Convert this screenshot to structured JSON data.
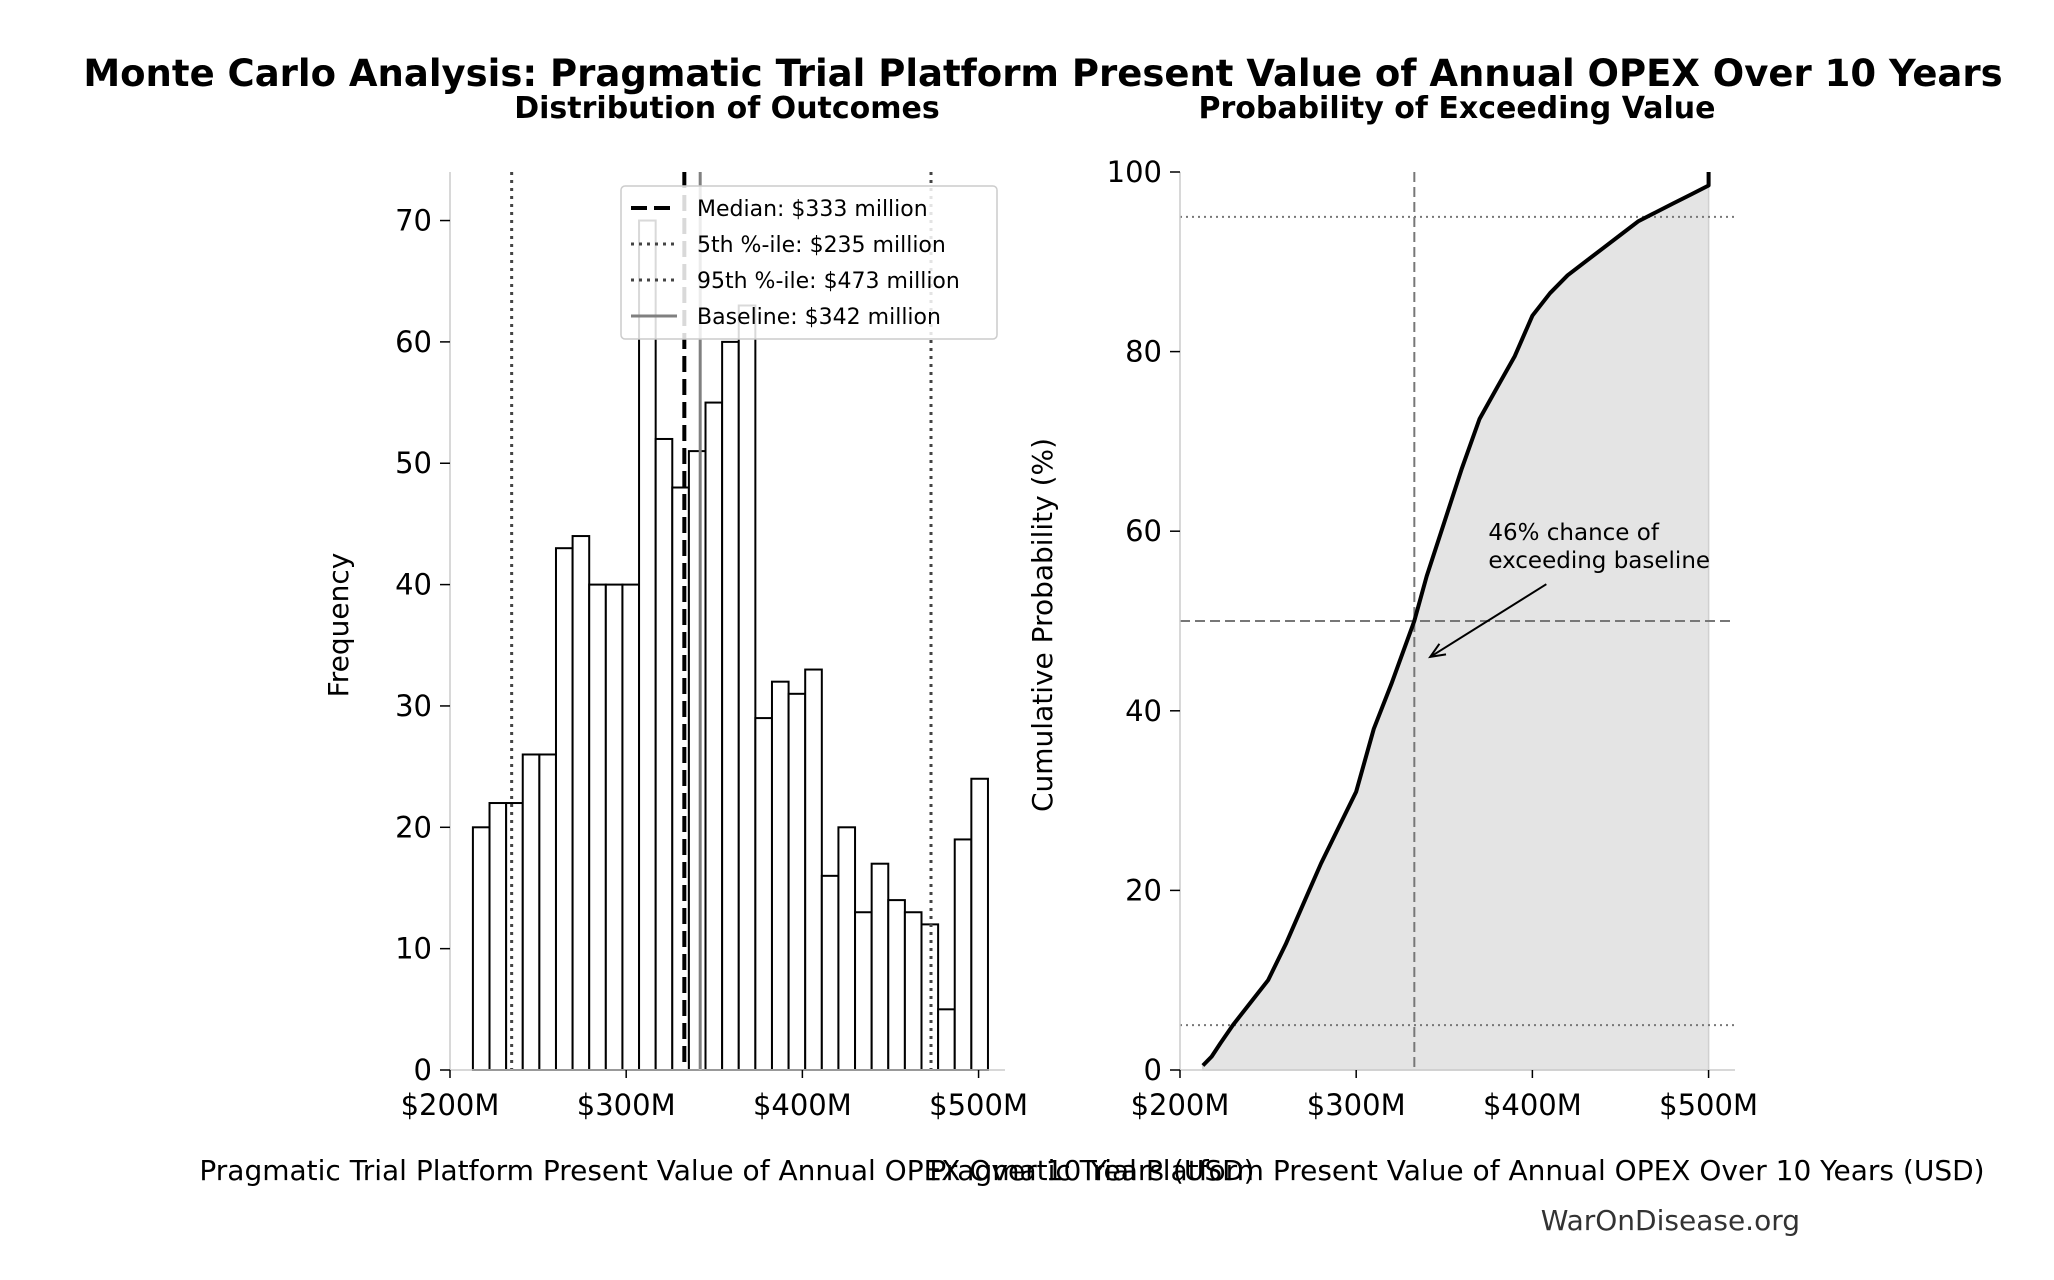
{
  "suptitle": "Monte Carlo Analysis: Pragmatic Trial Platform Present Value of Annual OPEX Over 10 Years",
  "watermark": "WarOnDisease.org",
  "colors": {
    "bar_fill": "#ffffff",
    "bar_edge": "#000000",
    "median_line": "#000000",
    "percentile_line": "#444444",
    "baseline_line": "#808080",
    "cdf_line": "#000000",
    "cdf_fill": "#e4e4e4",
    "reference_line": "#777777",
    "spine": "#cccccc"
  },
  "chart_data": [
    {
      "type": "bar",
      "title": "Distribution of Outcomes",
      "xlabel": "Pragmatic Trial Platform Present Value of Annual OPEX Over 10 Years (USD)",
      "ylabel": "Frequency",
      "xlim": [
        200,
        515
      ],
      "ylim": [
        0,
        74
      ],
      "x_unit": "million USD",
      "x_ticks": [
        200,
        300,
        400,
        500
      ],
      "x_tick_labels": [
        "$200M",
        "$300M",
        "$400M",
        "$500M"
      ],
      "y_ticks": [
        0,
        10,
        20,
        30,
        40,
        50,
        60,
        70
      ],
      "y_tick_labels": [
        "0",
        "10",
        "20",
        "30",
        "40",
        "50",
        "60",
        "70"
      ],
      "bin_start": 213,
      "bin_width": 9.43,
      "values": [
        20,
        22,
        22,
        26,
        26,
        43,
        44,
        40,
        40,
        40,
        70,
        52,
        48,
        51,
        55,
        60,
        63,
        29,
        32,
        31,
        33,
        16,
        20,
        13,
        17,
        14,
        13,
        12,
        5,
        19,
        24
      ],
      "reference_lines": [
        {
          "x": 333,
          "style": "median",
          "label": "Median: $333 million"
        },
        {
          "x": 235,
          "style": "percentile",
          "label": "5th %-ile: $235 million"
        },
        {
          "x": 473,
          "style": "percentile",
          "label": "95th %-ile: $473 million"
        },
        {
          "x": 342,
          "style": "baseline",
          "label": "Baseline: $342 million"
        }
      ],
      "legend": {
        "placement": "top-right",
        "entries": [
          "Median: $333 million",
          "5th %-ile: $235 million",
          "95th %-ile: $473 million",
          "Baseline: $342 million"
        ]
      },
      "grid": false
    },
    {
      "type": "area",
      "title": "Probability of Exceeding Value",
      "xlabel": "Pragmatic Trial Platform Present Value of Annual OPEX Over 10 Years (USD)",
      "ylabel": "Cumulative Probability (%)",
      "xlim": [
        200,
        515
      ],
      "ylim": [
        0,
        100
      ],
      "x_unit": "million USD",
      "x_ticks": [
        200,
        300,
        400,
        500
      ],
      "x_tick_labels": [
        "$200M",
        "$300M",
        "$400M",
        "$500M"
      ],
      "y_ticks": [
        0,
        20,
        40,
        60,
        80,
        100
      ],
      "y_tick_labels": [
        "0",
        "20",
        "40",
        "60",
        "80",
        "100"
      ],
      "series": [
        {
          "x": [
            213,
            218,
            223,
            230,
            240,
            250,
            260,
            270,
            280,
            290,
            300,
            310,
            320,
            333,
            340,
            350,
            360,
            370,
            380,
            390,
            400,
            410,
            420,
            430,
            440,
            450,
            460,
            470,
            480,
            490,
            500,
            500
          ],
          "y": [
            0.5,
            1.5,
            3,
            5,
            7.5,
            10,
            14,
            18.5,
            23,
            27,
            31,
            38,
            43,
            50,
            55,
            61,
            67,
            72.5,
            76,
            79.5,
            84,
            86.5,
            88.5,
            90,
            91.5,
            93,
            94.5,
            95.5,
            96.5,
            97.5,
            98.5,
            100
          ]
        }
      ],
      "hlines": [
        5,
        95,
        50
      ],
      "vline": 333,
      "annotation": {
        "text_lines": [
          "46% chance of",
          "exceeding baseline"
        ],
        "text_at": [
          375,
          59
        ],
        "arrow_to": [
          342,
          46
        ]
      },
      "grid": false
    }
  ]
}
